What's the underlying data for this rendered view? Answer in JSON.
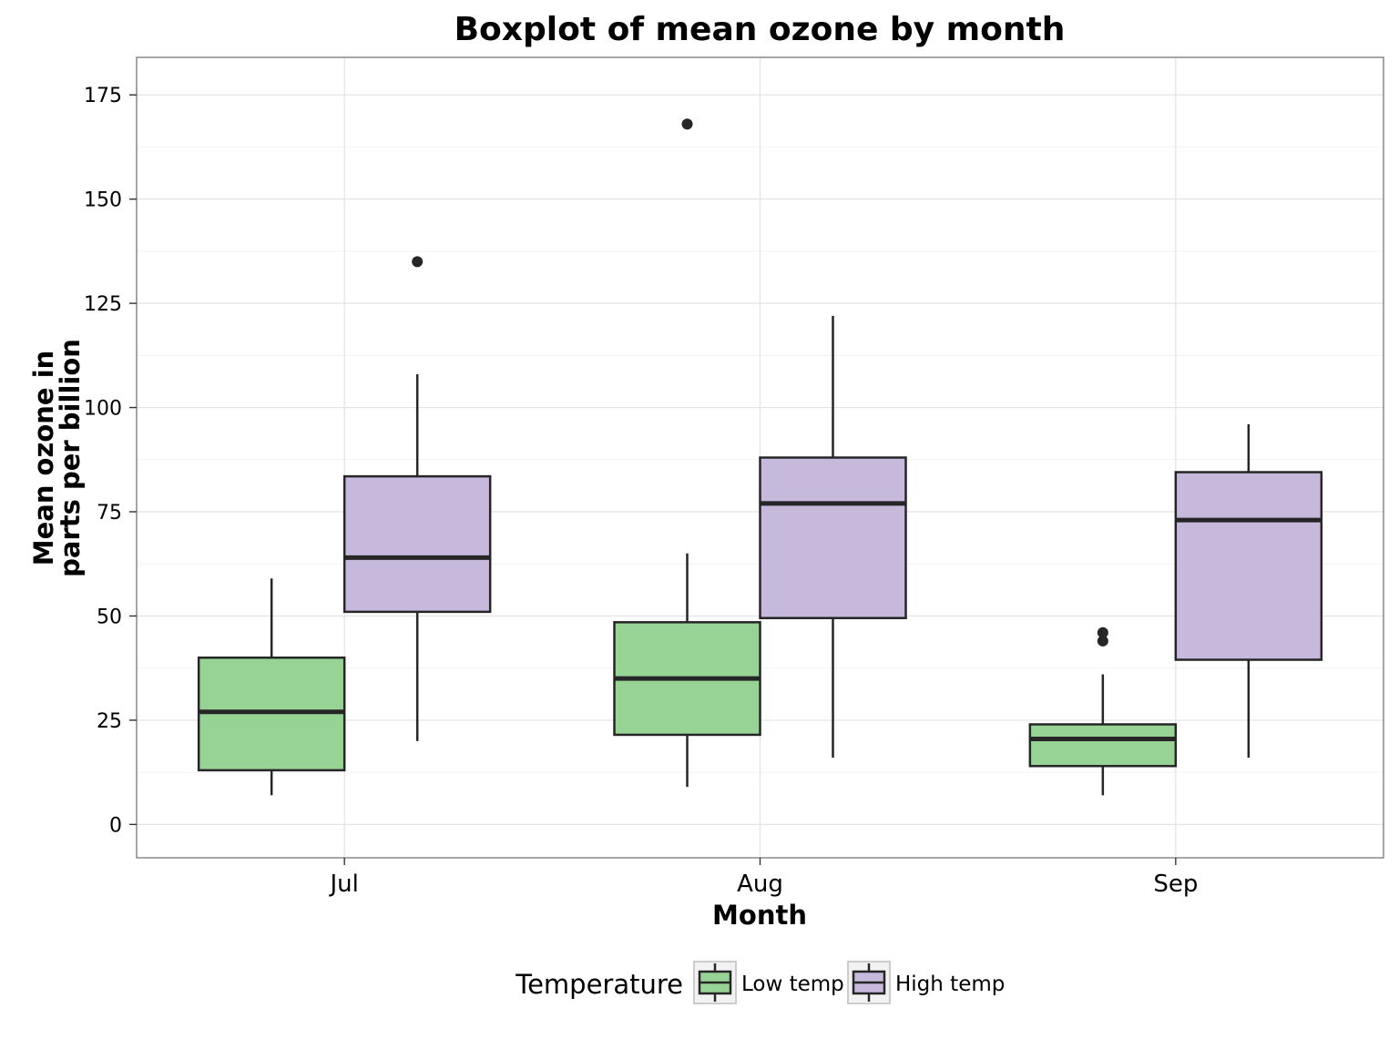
{
  "chart_data": {
    "type": "boxplot",
    "title": "Boxplot of mean ozone by month",
    "xlabel": "Month",
    "ylabel_lines": [
      "Mean ozone in",
      "parts per billion"
    ],
    "categories": [
      "Jul",
      "Aug",
      "Sep"
    ],
    "ylim": [
      -8,
      184
    ],
    "yticks": [
      0,
      25,
      50,
      75,
      100,
      125,
      150,
      175
    ],
    "grid": true,
    "legend": {
      "position": "bottom",
      "title": "Temperature"
    },
    "series": [
      {
        "name": "Low temp",
        "color": "#98d396",
        "boxes": [
          {
            "category": "Jul",
            "min": 7,
            "q1": 13,
            "median": 27,
            "q3": 40,
            "max": 59,
            "outliers": []
          },
          {
            "category": "Aug",
            "min": 9,
            "q1": 21.5,
            "median": 35,
            "q3": 48.5,
            "max": 65,
            "outliers": [
              168
            ]
          },
          {
            "category": "Sep",
            "min": 7,
            "q1": 14,
            "median": 20.5,
            "q3": 24,
            "max": 36,
            "outliers": [
              44,
              46
            ]
          }
        ]
      },
      {
        "name": "High temp",
        "color": "#c7b9dc",
        "boxes": [
          {
            "category": "Jul",
            "min": 20,
            "q1": 51,
            "median": 64,
            "q3": 83.5,
            "max": 108,
            "outliers": [
              135
            ]
          },
          {
            "category": "Aug",
            "min": 16,
            "q1": 49.5,
            "median": 77,
            "q3": 88,
            "max": 122,
            "outliers": []
          },
          {
            "category": "Sep",
            "min": 16,
            "q1": 39.5,
            "median": 73,
            "q3": 84.5,
            "max": 96,
            "outliers": []
          }
        ]
      }
    ]
  }
}
